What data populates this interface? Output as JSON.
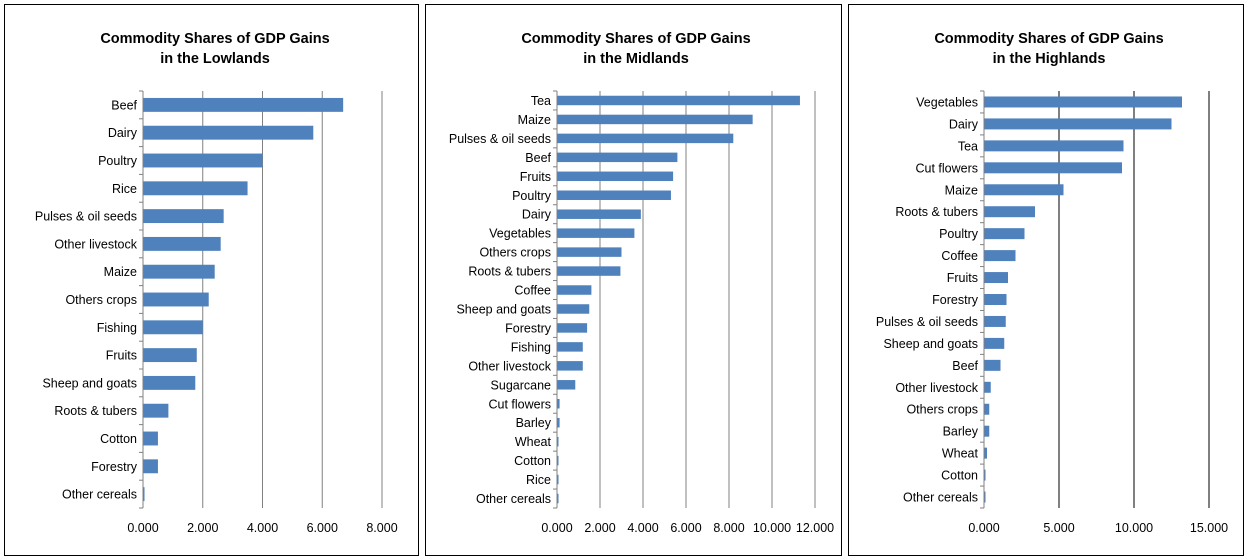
{
  "chart_data": [
    {
      "type": "bar",
      "orientation": "horizontal",
      "title": [
        "Commodity Shares of GDP Gains",
        "in the Lowlands"
      ],
      "categories": [
        "Beef",
        "Dairy",
        "Poultry",
        "Rice",
        "Pulses & oil seeds",
        "Other livestock",
        "Maize",
        "Others crops",
        "Fishing",
        "Fruits",
        "Sheep and goats",
        "Roots & tubers",
        "Cotton",
        "Forestry",
        "Other cereals"
      ],
      "values": [
        6.7,
        5.7,
        4.0,
        3.5,
        2.7,
        2.6,
        2.4,
        2.2,
        2.0,
        1.8,
        1.75,
        0.85,
        0.5,
        0.5,
        0.05
      ],
      "xlim": [
        0,
        8
      ],
      "xticks": [
        0,
        2,
        4,
        6,
        8
      ],
      "xtick_labels": [
        "0.000",
        "2.000",
        "4.000",
        "6.000",
        "8.000"
      ],
      "grid": "vertical",
      "gridline_color": "#808080",
      "bar_color": "#4f81bd"
    },
    {
      "type": "bar",
      "orientation": "horizontal",
      "title": [
        "Commodity Shares of GDP Gains",
        "in the Midlands"
      ],
      "categories": [
        "Tea",
        "Maize",
        "Pulses & oil seeds",
        "Beef",
        "Fruits",
        "Poultry",
        "Dairy",
        "Vegetables",
        "Others crops",
        "Roots & tubers",
        "Coffee",
        "Sheep and goats",
        "Forestry",
        "Fishing",
        "Other livestock",
        "Sugarcane",
        "Cut flowers",
        "Barley",
        "Wheat",
        "Cotton",
        "Rice",
        "Other cereals"
      ],
      "values": [
        11.3,
        9.1,
        8.2,
        5.6,
        5.4,
        5.3,
        3.9,
        3.6,
        3.0,
        2.95,
        1.6,
        1.5,
        1.4,
        1.2,
        1.2,
        0.85,
        0.12,
        0.12,
        0.06,
        0.06,
        0.06,
        0.06
      ],
      "xlim": [
        0,
        12
      ],
      "xticks": [
        0,
        2,
        4,
        6,
        8,
        10,
        12
      ],
      "xtick_labels": [
        "0.000",
        "2.000",
        "4.000",
        "6.000",
        "8.000",
        "10.000",
        "12.000"
      ],
      "grid": "vertical",
      "gridline_color": "#808080",
      "bar_color": "#4f81bd"
    },
    {
      "type": "bar",
      "orientation": "horizontal",
      "title": [
        "Commodity Shares of GDP Gains",
        "in the Highlands"
      ],
      "categories": [
        "Vegetables",
        "Dairy",
        "Tea",
        "Cut flowers",
        "Maize",
        "Roots & tubers",
        "Poultry",
        "Coffee",
        "Fruits",
        "Forestry",
        "Pulses & oil seeds",
        "Sheep and goats",
        "Beef",
        "Other livestock",
        "Others crops",
        "Barley",
        "Wheat",
        "Cotton",
        "Other cereals"
      ],
      "values": [
        13.2,
        12.5,
        9.3,
        9.2,
        5.3,
        3.4,
        2.7,
        2.1,
        1.6,
        1.5,
        1.45,
        1.35,
        1.1,
        0.45,
        0.35,
        0.35,
        0.2,
        0.1,
        0.1
      ],
      "xlim": [
        0,
        15
      ],
      "xticks": [
        0,
        5,
        10,
        15
      ],
      "xtick_labels": [
        "0.000",
        "5.000",
        "10.000",
        "15.000"
      ],
      "grid": "vertical",
      "gridline_color": "#000000",
      "bar_color": "#4f81bd"
    }
  ]
}
